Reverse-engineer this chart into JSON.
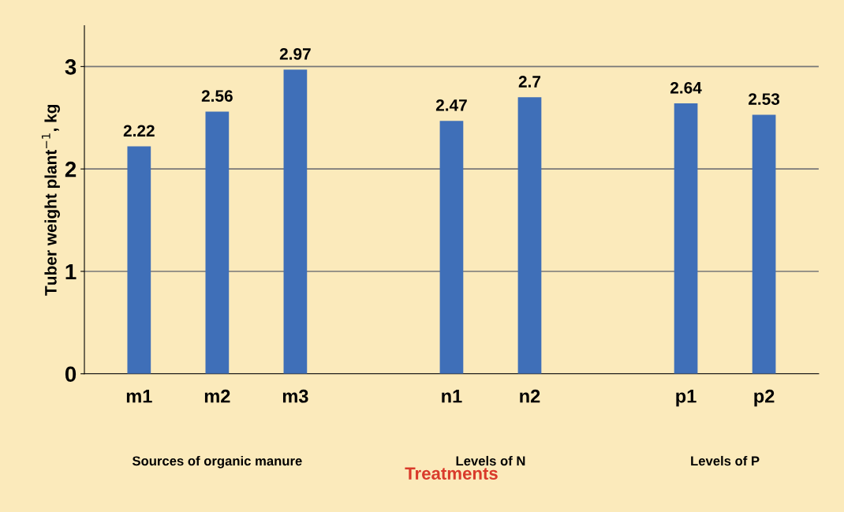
{
  "chart_data": {
    "type": "bar",
    "xlabel": "Treatments",
    "ylabel": "Tuber weight plant$^{−1}$, kg",
    "categories": [
      "m1",
      "m2",
      "m3",
      null,
      "n1",
      "n2",
      null,
      "p1",
      "p2"
    ],
    "values": [
      2.22,
      2.56,
      2.97,
      null,
      2.47,
      2.7,
      null,
      2.64,
      2.53
    ],
    "color": "#3f6fb8",
    "ylim": [
      0,
      3.4
    ],
    "yticks": [
      0,
      1,
      2,
      3
    ],
    "grid": "y",
    "data_labels": true,
    "annotations": [
      "Sources of organic manure",
      "Levels of N",
      "Levels of P"
    ]
  }
}
